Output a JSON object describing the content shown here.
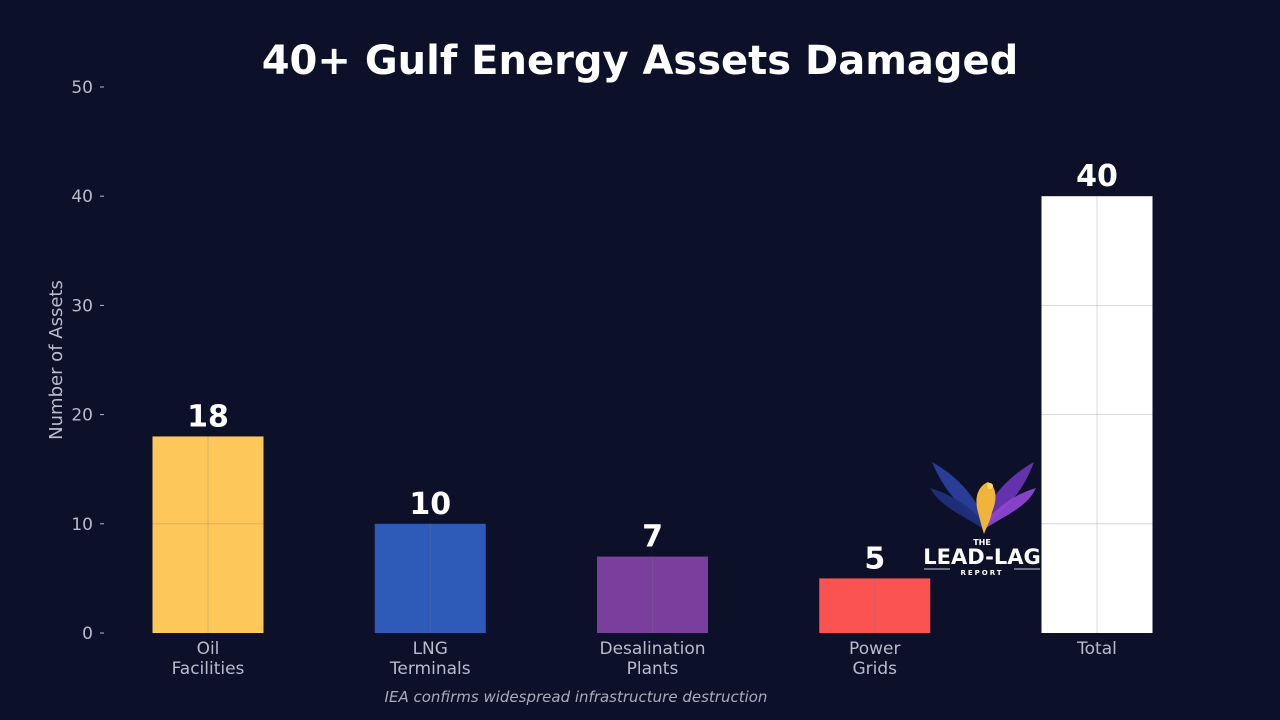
{
  "chart_data": {
    "type": "bar",
    "title": "40+ Gulf Energy Assets Damaged",
    "xlabel": "",
    "ylabel": "Number of Assets",
    "ylim": [
      0,
      50
    ],
    "yticks": [
      0,
      10,
      20,
      30,
      40,
      50
    ],
    "grid": true,
    "categories": [
      [
        "Oil",
        "Facilities"
      ],
      [
        "LNG",
        "Terminals"
      ],
      [
        "Desalination",
        "Plants"
      ],
      [
        "Power",
        "Grids"
      ],
      [
        "Total"
      ]
    ],
    "values": [
      18,
      10,
      7,
      5,
      40
    ],
    "colors": [
      "#fdc75a",
      "#2f5bb8",
      "#7a3e9d",
      "#fb5252",
      "#ffffff"
    ],
    "annotation": "IEA confirms widespread infrastructure destruction"
  },
  "watermark": {
    "line1": "THE",
    "line2": "LEAD-LAG",
    "line3": "REPORT"
  }
}
